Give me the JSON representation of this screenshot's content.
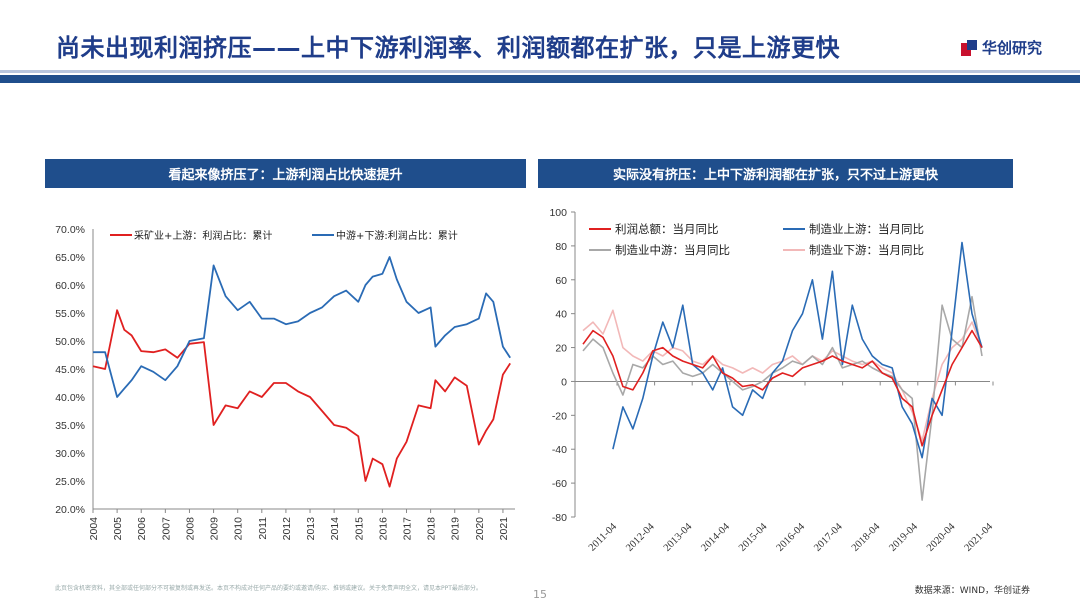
{
  "header": {
    "title": "尚未出现利润挤压——上中下游利润率、利润额都在扩张，只是上游更快",
    "logo_text": "华创研究"
  },
  "colors": {
    "blue": "#1f4e8c",
    "red": "#e02020",
    "line_blue": "#2a6bb5",
    "gray": "#a8a8a8",
    "pink": "#f2b8b8"
  },
  "panels": [
    {
      "title": "看起来像挤压了：上游利润占比快速提升"
    },
    {
      "title": "实际没有挤压：上中下游利润都在扩张，只不过上游更快"
    }
  ],
  "chart_data": [
    {
      "type": "line",
      "title": "看起来像挤压了：上游利润占比快速提升",
      "x": [
        2004,
        2004.5,
        2005,
        2005.3,
        2005.6,
        2006,
        2006.5,
        2007,
        2007.5,
        2008,
        2008.6,
        2009,
        2009.5,
        2010,
        2010.5,
        2011,
        2011.5,
        2012,
        2012.5,
        2013,
        2013.5,
        2014,
        2014.5,
        2015,
        2015.3,
        2015.6,
        2016,
        2016.3,
        2016.6,
        2017,
        2017.5,
        2018,
        2018.2,
        2018.6,
        2019,
        2019.5,
        2020,
        2020.3,
        2020.6,
        2021,
        2021.3
      ],
      "xticks": [
        "2004",
        "2005",
        "2006",
        "2007",
        "2008",
        "2009",
        "2010",
        "2011",
        "2012",
        "2013",
        "2014",
        "2015",
        "2016",
        "2017",
        "2018",
        "2019",
        "2020",
        "2021"
      ],
      "ylim": [
        20,
        70
      ],
      "yticks": [
        "20.0%",
        "25.0%",
        "30.0%",
        "35.0%",
        "40.0%",
        "45.0%",
        "50.0%",
        "55.0%",
        "60.0%",
        "65.0%",
        "70.0%"
      ],
      "series": [
        {
          "name": "采矿业+上游：利润占比：累计",
          "color": "#e02020",
          "values": [
            45.5,
            45,
            55.5,
            52,
            51,
            48.2,
            48,
            48.5,
            47,
            49.5,
            49.8,
            35,
            38.5,
            38,
            41,
            40,
            42.5,
            42.5,
            41,
            40,
            37.5,
            35,
            34.5,
            33,
            25,
            29,
            28,
            24,
            29,
            32,
            38.5,
            38,
            43,
            41,
            43.5,
            42,
            31.5,
            34,
            36,
            44,
            46
          ]
        },
        {
          "name": "中游+下游:利润占比：累计",
          "color": "#2a6bb5",
          "values": [
            48,
            48,
            40,
            41.5,
            43,
            45.5,
            44.5,
            43,
            45.5,
            50,
            50.5,
            63.5,
            58,
            55.5,
            57,
            54,
            54,
            53,
            53.5,
            55,
            56,
            58,
            59,
            57,
            60,
            61.5,
            62,
            65,
            61,
            57,
            55,
            56,
            49,
            51,
            52.5,
            53,
            54,
            58.5,
            57,
            49,
            47
          ]
        }
      ]
    },
    {
      "type": "line",
      "title": "实际没有挤压：上中下游利润都在扩张，只不过上游更快",
      "xticks": [
        "2011-04",
        "2012-04",
        "2013-04",
        "2014-04",
        "2015-04",
        "2016-04",
        "2017-04",
        "2018-04",
        "2019-04",
        "2020-04",
        "2021-04"
      ],
      "ylim": [
        -80,
        100
      ],
      "yticks": [
        "-80",
        "-60",
        "-40",
        "-20",
        "0",
        "20",
        "40",
        "60",
        "80",
        "100"
      ],
      "series": [
        {
          "name": "利润总额：当月同比",
          "color": "#e02020",
          "values": [
            22,
            30,
            26,
            15,
            -3,
            -5,
            5,
            18,
            20,
            15,
            12,
            10,
            8,
            15,
            5,
            2,
            -3,
            -2,
            -5,
            2,
            5,
            3,
            8,
            10,
            12,
            15,
            12,
            10,
            8,
            12,
            5,
            2,
            -10,
            -15,
            -38,
            -20,
            -5,
            10,
            20,
            30,
            20
          ]
        },
        {
          "name": "制造业上游：当月同比",
          "color": "#2a6bb5",
          "values": [
            null,
            null,
            null,
            -40,
            -15,
            -28,
            -10,
            15,
            35,
            20,
            45,
            10,
            5,
            -5,
            8,
            -15,
            -20,
            -5,
            -10,
            5,
            12,
            30,
            40,
            60,
            25,
            65,
            10,
            45,
            25,
            15,
            10,
            8,
            -15,
            -25,
            -45,
            -10,
            -20,
            30,
            82,
            40,
            20
          ]
        },
        {
          "name": "制造业中游：当月同比",
          "color": "#a8a8a8",
          "values": [
            18,
            25,
            20,
            5,
            -8,
            10,
            8,
            15,
            10,
            12,
            5,
            3,
            5,
            10,
            5,
            0,
            -5,
            -3,
            0,
            5,
            8,
            12,
            10,
            15,
            10,
            20,
            8,
            10,
            12,
            8,
            5,
            3,
            -5,
            -10,
            -70,
            -20,
            45,
            25,
            20,
            50,
            15
          ]
        },
        {
          "name": "制造业下游：当月同比",
          "color": "#f2b8b8",
          "values": [
            30,
            35,
            28,
            42,
            20,
            15,
            12,
            18,
            15,
            20,
            18,
            12,
            10,
            15,
            10,
            8,
            5,
            8,
            5,
            10,
            12,
            15,
            10,
            15,
            12,
            18,
            15,
            12,
            10,
            12,
            8,
            5,
            -5,
            -18,
            -35,
            -10,
            10,
            20,
            25,
            35,
            20
          ]
        }
      ]
    }
  ],
  "footer": {
    "disclaimer": "此页包含机密资料，其全部或任何部分不可被复制或再发送。本页不构成对任何产品的要约或邀请/购买、推销或建议。关于免责声明全文，请见本PPT最后部分。",
    "page": "15",
    "source": "数据来源：WIND，华创证券"
  }
}
